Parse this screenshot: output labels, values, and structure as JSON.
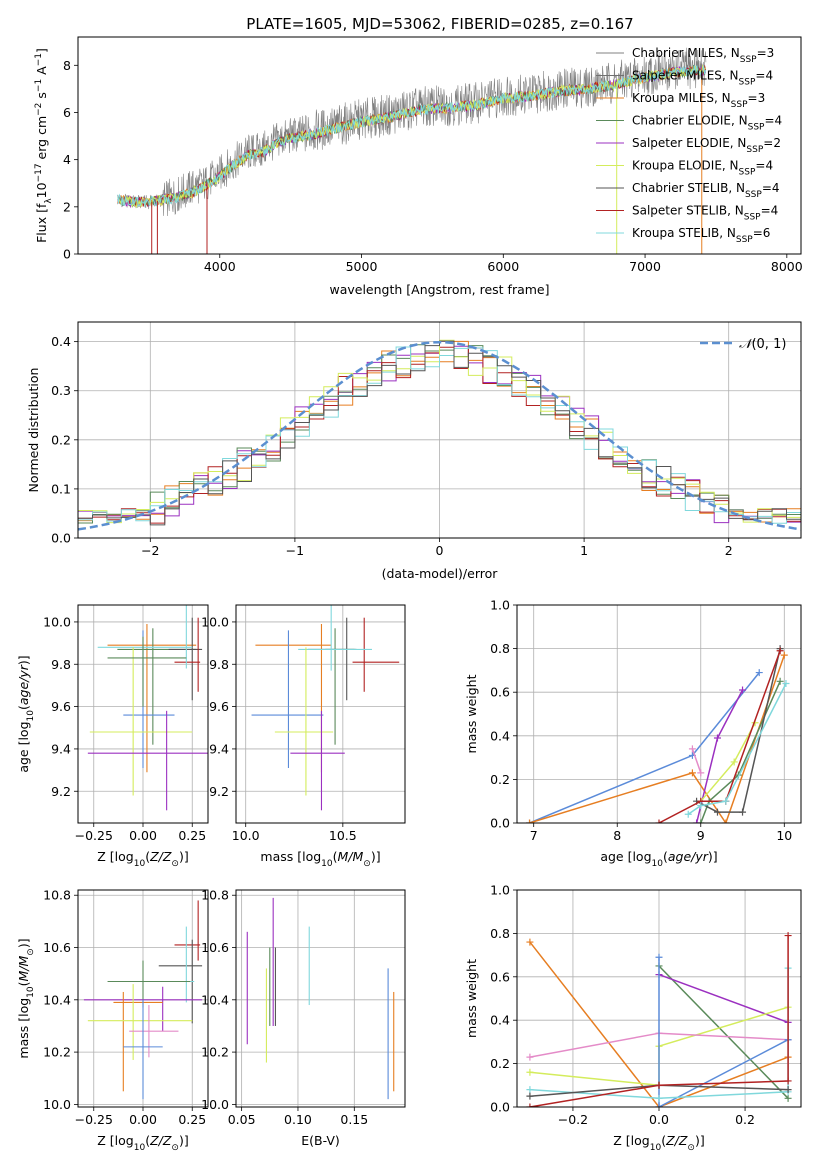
{
  "figure_title": "PLATE=1605, MJD=53062, FIBERID=0285, z=0.167",
  "colors": {
    "chabrier_miles": "#808080",
    "salpeter_miles": "#707070",
    "kroupa_miles": "#e67e22",
    "chabrier_elodie": "#5a8a5a",
    "salpeter_elodie": "#9b30c0",
    "kroupa_elodie": "#d4ec5c",
    "chabrier_stelib": "#555555",
    "salpeter_stelib": "#b22222",
    "kroupa_stelib": "#80d8dc",
    "extra_blue": "#5b8bd9",
    "extra_pink": "#e48bc8",
    "normal_curve": "#5b8fd0"
  },
  "chart_data": [
    {
      "id": "spectrum",
      "type": "line",
      "title": "PLATE=1605, MJD=53062, FIBERID=0285, z=0.167",
      "xlabel": "wavelength [Angstrom, rest frame]",
      "ylabel": "Flux [f_λ 10^-17 erg cm^-2 s^-1 A^-1]",
      "xlim": [
        3000,
        8100
      ],
      "ylim": [
        0,
        9.2
      ],
      "xticks": [
        4000,
        5000,
        6000,
        7000,
        8000
      ],
      "yticks": [
        0,
        2,
        4,
        6,
        8
      ],
      "legend_position": "right",
      "legend": [
        {
          "label": "Chabrier MILES, N_SSP=3",
          "color": "#808080"
        },
        {
          "label": "Salpeter MILES, N_SSP=4",
          "color": "#707070"
        },
        {
          "label": "Kroupa MILES, N_SSP=3",
          "color": "#e67e22"
        },
        {
          "label": "Chabrier ELODIE, N_SSP=4",
          "color": "#5a8a5a"
        },
        {
          "label": "Salpeter ELODIE, N_SSP=2",
          "color": "#9b30c0"
        },
        {
          "label": "Kroupa ELODIE, N_SSP=4",
          "color": "#d4ec5c"
        },
        {
          "label": "Chabrier STELIB, N_SSP=4",
          "color": "#555555"
        },
        {
          "label": "Salpeter STELIB, N_SSP=4",
          "color": "#b22222"
        },
        {
          "label": "Kroupa STELIB, N_SSP=6",
          "color": "#80d8dc"
        }
      ],
      "data_continuum": {
        "x": [
          3280,
          3400,
          3500,
          3600,
          3700,
          3800,
          3900,
          4000,
          4100,
          4200,
          4300,
          4400,
          4500,
          4600,
          4800,
          5000,
          5200,
          5400,
          5600,
          5800,
          6000,
          6200,
          6400,
          6600,
          6800,
          7000,
          7200,
          7400
        ],
        "y": [
          2.3,
          2.2,
          2.2,
          2.3,
          2.5,
          2.8,
          3.0,
          3.4,
          3.9,
          4.3,
          4.4,
          4.8,
          5.0,
          5.1,
          5.4,
          5.7,
          5.9,
          6.2,
          6.3,
          6.4,
          6.7,
          6.8,
          7.0,
          7.1,
          7.3,
          7.6,
          7.8,
          7.9
        ]
      },
      "model_continuum": {
        "x": [
          3280,
          3400,
          3500,
          3600,
          3700,
          3800,
          3900,
          4000,
          4100,
          4200,
          4300,
          4400,
          4500,
          4600,
          4800,
          5000,
          5200,
          5400,
          5600,
          5800,
          6000,
          6200,
          6400,
          6600,
          6800,
          7000,
          7200,
          7400
        ],
        "y": [
          2.3,
          2.2,
          2.2,
          2.3,
          2.4,
          2.6,
          2.9,
          3.3,
          3.8,
          4.2,
          4.3,
          4.7,
          4.9,
          5.0,
          5.3,
          5.6,
          5.8,
          6.1,
          6.2,
          6.3,
          6.6,
          6.7,
          6.9,
          7.0,
          7.2,
          7.5,
          7.7,
          7.8
        ]
      }
    },
    {
      "id": "residuals",
      "type": "histogram",
      "xlabel": "(data-model)/error",
      "ylabel": "Normed distribution",
      "xlim": [
        -2.5,
        2.5
      ],
      "ylim": [
        0,
        0.44
      ],
      "xticks": [
        -2,
        -1,
        0,
        1,
        2
      ],
      "yticks": [
        0.0,
        0.1,
        0.2,
        0.3,
        0.4
      ],
      "grid": true,
      "legend": [
        {
          "label": "N(0,1)",
          "style": "dashed",
          "color": "#5b8fd0"
        }
      ],
      "bin_width": 0.1,
      "reference_curve": "normal(0,1)"
    },
    {
      "id": "age_vs_Z",
      "type": "errorbar",
      "xlabel": "Z [log10(Z/Z_sun)]",
      "ylabel": "age [log10(age/yr)]",
      "xlim": [
        -0.33,
        0.33
      ],
      "ylim": [
        9.05,
        10.08
      ],
      "xticks": [
        -0.25,
        0.0,
        0.25
      ],
      "yticks": [
        9.2,
        9.4,
        9.6,
        9.8,
        10.0
      ],
      "grid": true,
      "points": [
        {
          "x": 0.02,
          "y": 9.89,
          "xerr": [
            0.2,
            0.25
          ],
          "yerr": [
            0.6,
            0.1
          ],
          "color": "#e67e22"
        },
        {
          "x": 0.05,
          "y": 9.87,
          "xerr": [
            0.18,
            0.22
          ],
          "yerr": [
            0.45,
            0.1
          ],
          "color": "#5a8a5a"
        },
        {
          "x": 0.25,
          "y": 9.87,
          "xerr": [
            0.12,
            0.05
          ],
          "yerr": [
            0.24,
            0.15
          ],
          "color": "#555555"
        },
        {
          "x": 0.28,
          "y": 9.81,
          "xerr": [
            0.12,
            0.01
          ],
          "yerr": [
            0.14,
            0.21
          ],
          "color": "#b22222"
        },
        {
          "x": 0.22,
          "y": 9.88,
          "xerr": [
            0.45,
            0.03
          ],
          "yerr": [
            0.1,
            0.22
          ],
          "color": "#80d8dc"
        },
        {
          "x": 0.0,
          "y": 9.56,
          "xerr": [
            0.1,
            0.16
          ],
          "yerr": [
            0.25,
            0.4
          ],
          "color": "#5b8bd9"
        },
        {
          "x": -0.05,
          "y": 9.48,
          "xerr": [
            0.22,
            0.3
          ],
          "yerr": [
            0.3,
            0.4
          ],
          "color": "#d4ec5c"
        },
        {
          "x": 0.12,
          "y": 9.38,
          "xerr": [
            0.4,
            0.3
          ],
          "yerr": [
            0.27,
            0.2
          ],
          "color": "#9b30c0"
        },
        {
          "x": 0.0,
          "y": 9.83,
          "xerr": [
            0.18,
            0.22
          ],
          "yerr": [
            0.23,
            0.1
          ],
          "color": "#5a8a5a"
        }
      ]
    },
    {
      "id": "age_vs_mass",
      "type": "errorbar",
      "xlabel": "mass [log10(M/M_sun)]",
      "xlim": [
        9.95,
        10.82
      ],
      "ylim": [
        9.05,
        10.08
      ],
      "xticks": [
        10.0,
        10.5
      ],
      "yticks": [
        9.2,
        9.4,
        9.6,
        9.8,
        10.0
      ],
      "grid": true,
      "points": [
        {
          "x": 10.39,
          "y": 9.89,
          "xerr": [
            0.34,
            0.05
          ],
          "yerr": [
            0.6,
            0.1
          ],
          "color": "#e67e22"
        },
        {
          "x": 10.46,
          "y": 9.87,
          "xerr": [
            0.05,
            0.1
          ],
          "yerr": [
            0.45,
            0.1
          ],
          "color": "#5a8a5a"
        },
        {
          "x": 10.52,
          "y": 9.87,
          "xerr": [
            0.2,
            0.05
          ],
          "yerr": [
            0.24,
            0.15
          ],
          "color": "#555555"
        },
        {
          "x": 10.61,
          "y": 9.81,
          "xerr": [
            0.06,
            0.18
          ],
          "yerr": [
            0.14,
            0.21
          ],
          "color": "#b22222"
        },
        {
          "x": 10.44,
          "y": 9.87,
          "xerr": [
            0.17,
            0.21
          ],
          "yerr": [
            0.1,
            0.22
          ],
          "color": "#80d8dc"
        },
        {
          "x": 10.22,
          "y": 9.56,
          "xerr": [
            0.19,
            0.18
          ],
          "yerr": [
            0.25,
            0.4
          ],
          "color": "#5b8bd9"
        },
        {
          "x": 10.31,
          "y": 9.48,
          "xerr": [
            0.16,
            0.14
          ],
          "yerr": [
            0.3,
            0.4
          ],
          "color": "#d4ec5c"
        },
        {
          "x": 10.39,
          "y": 9.38,
          "xerr": [
            0.16,
            0.12
          ],
          "yerr": [
            0.27,
            0.2
          ],
          "color": "#9b30c0"
        }
      ]
    },
    {
      "id": "massweight_vs_age",
      "type": "line",
      "xlabel": "age [log10(age/yr)]",
      "ylabel": "mass weight",
      "xlim": [
        6.8,
        10.2
      ],
      "ylim": [
        0,
        1.0
      ],
      "xticks": [
        7,
        8,
        9,
        10
      ],
      "yticks": [
        0.0,
        0.2,
        0.4,
        0.6,
        0.8,
        1.0
      ],
      "grid": true,
      "series": [
        {
          "color": "#5b8bd9",
          "x": [
            6.95,
            8.9,
            9.7
          ],
          "y": [
            0.0,
            0.31,
            0.69
          ]
        },
        {
          "color": "#e67e22",
          "x": [
            6.95,
            8.9,
            9.3,
            10.0
          ],
          "y": [
            0.0,
            0.23,
            0.0,
            0.77
          ]
        },
        {
          "color": "#9b30c0",
          "x": [
            8.95,
            9.2,
            9.5
          ],
          "y": [
            0.0,
            0.39,
            0.61
          ]
        },
        {
          "color": "#d4ec5c",
          "x": [
            9.0,
            9.4,
            9.65
          ],
          "y": [
            0.1,
            0.28,
            0.46
          ]
        },
        {
          "color": "#5a8a5a",
          "x": [
            9.0,
            9.1,
            9.45,
            9.95
          ],
          "y": [
            0.0,
            0.1,
            0.22,
            0.65
          ]
        },
        {
          "color": "#555555",
          "x": [
            8.95,
            9.2,
            9.5,
            9.95
          ],
          "y": [
            0.1,
            0.05,
            0.05,
            0.8
          ]
        },
        {
          "color": "#b22222",
          "x": [
            8.5,
            9.0,
            9.3,
            9.95
          ],
          "y": [
            0.0,
            0.1,
            0.1,
            0.79
          ]
        },
        {
          "color": "#80d8dc",
          "x": [
            8.85,
            9.0,
            9.3,
            10.02
          ],
          "y": [
            0.04,
            0.08,
            0.1,
            0.64
          ]
        },
        {
          "color": "#e48bc8",
          "x": [
            8.9,
            9.0
          ],
          "y": [
            0.34,
            0.23
          ]
        }
      ]
    },
    {
      "id": "mass_vs_Z",
      "type": "errorbar",
      "xlabel": "Z [log10(Z/Z_sun)]",
      "ylabel": "mass [log10(M/M_sun)]",
      "xlim": [
        -0.33,
        0.33
      ],
      "ylim": [
        9.99,
        10.82
      ],
      "xticks": [
        -0.25,
        0.0,
        0.25
      ],
      "yticks": [
        10.0,
        10.2,
        10.4,
        10.6,
        10.8
      ],
      "grid": true,
      "points": [
        {
          "x": 0.28,
          "y": 10.61,
          "xerr": [
            0.12,
            0.01
          ],
          "yerr": [
            0.06,
            0.17
          ],
          "color": "#b22222"
        },
        {
          "x": 0.25,
          "y": 10.53,
          "xerr": [
            0.17,
            0.05
          ],
          "yerr": [
            0.22,
            0.1
          ],
          "color": "#555555"
        },
        {
          "x": 0.22,
          "y": 10.47,
          "xerr": [
            0.37,
            0.04
          ],
          "yerr": [
            0.08,
            0.21
          ],
          "color": "#80d8dc"
        },
        {
          "x": 0.0,
          "y": 10.47,
          "xerr": [
            0.18,
            0.24
          ],
          "yerr": [
            0.1,
            0.08
          ],
          "color": "#5a8a5a"
        },
        {
          "x": 0.1,
          "y": 10.4,
          "xerr": [
            0.4,
            0.2
          ],
          "yerr": [
            0.12,
            0.05
          ],
          "color": "#9b30c0"
        },
        {
          "x": -0.1,
          "y": 10.39,
          "xerr": [
            0.05,
            0.2
          ],
          "yerr": [
            0.34,
            0.04
          ],
          "color": "#e67e22"
        },
        {
          "x": -0.05,
          "y": 10.32,
          "xerr": [
            0.23,
            0.3
          ],
          "yerr": [
            0.15,
            0.14
          ],
          "color": "#d4ec5c"
        },
        {
          "x": 0.03,
          "y": 10.28,
          "xerr": [
            0.1,
            0.15
          ],
          "yerr": [
            0.1,
            0.1
          ],
          "color": "#e48bc8"
        },
        {
          "x": 0.0,
          "y": 10.22,
          "xerr": [
            0.1,
            0.1
          ],
          "yerr": [
            0.2,
            0.18
          ],
          "color": "#5b8bd9"
        }
      ]
    },
    {
      "id": "mass_vs_ebv",
      "type": "errorbar",
      "xlabel": "E(B-V)",
      "xlim": [
        0.045,
        0.195
      ],
      "ylim": [
        9.99,
        10.82
      ],
      "xticks": [
        0.05,
        0.1,
        0.15
      ],
      "yticks": [
        10.0,
        10.2,
        10.4,
        10.6,
        10.8
      ],
      "grid": true,
      "points": [
        {
          "x": 0.055,
          "y": 10.45,
          "yerr": [
            0.22,
            0.21
          ],
          "color": "#9b30c0"
        },
        {
          "x": 0.072,
          "y": 10.3,
          "yerr": [
            0.14,
            0.22
          ],
          "color": "#d4ec5c"
        },
        {
          "x": 0.075,
          "y": 10.42,
          "yerr": [
            0.12,
            0.18
          ],
          "color": "#5a8a5a"
        },
        {
          "x": 0.078,
          "y": 10.55,
          "yerr": [
            0.25,
            0.24
          ],
          "color": "#9b30c0"
        },
        {
          "x": 0.08,
          "y": 10.45,
          "yerr": [
            0.15,
            0.15
          ],
          "color": "#555555"
        },
        {
          "x": 0.11,
          "y": 10.49,
          "yerr": [
            0.11,
            0.19
          ],
          "color": "#80d8dc"
        },
        {
          "x": 0.18,
          "y": 10.28,
          "yerr": [
            0.26,
            0.24
          ],
          "color": "#5b8bd9"
        },
        {
          "x": 0.185,
          "y": 10.25,
          "yerr": [
            0.2,
            0.18
          ],
          "color": "#e67e22"
        }
      ]
    },
    {
      "id": "massweight_vs_Z",
      "type": "line",
      "xlabel": "Z [log10(Z/Z_sun)]",
      "ylabel": "mass weight",
      "xlim": [
        -0.33,
        0.33
      ],
      "ylim": [
        0,
        1.0
      ],
      "xticks": [
        -0.2,
        0.0,
        0.2
      ],
      "yticks": [
        0.0,
        0.2,
        0.4,
        0.6,
        0.8,
        1.0
      ],
      "grid": true,
      "series": [
        {
          "color": "#e67e22",
          "x": [
            -0.3,
            0.0,
            0.3
          ],
          "y": [
            0.76,
            0.0,
            0.23
          ]
        },
        {
          "color": "#5a8a5a",
          "x": [
            0.0,
            0.3
          ],
          "y": [
            0.65,
            0.04
          ]
        },
        {
          "color": "#9b30c0",
          "x": [
            0.0,
            0.3
          ],
          "y": [
            0.61,
            0.39
          ]
        },
        {
          "color": "#d4ec5c",
          "x": [
            -0.3,
            0.0,
            0.0,
            0.3
          ],
          "y": [
            0.16,
            0.1,
            0.28,
            0.46
          ]
        },
        {
          "color": "#e48bc8",
          "x": [
            -0.3,
            0.0,
            0.3
          ],
          "y": [
            0.23,
            0.34,
            0.31
          ]
        },
        {
          "color": "#5b8bd9",
          "x": [
            0.0,
            0.0,
            0.3
          ],
          "y": [
            0.69,
            0.0,
            0.31
          ]
        },
        {
          "color": "#80d8dc",
          "x": [
            -0.3,
            0.0,
            0.3,
            0.3
          ],
          "y": [
            0.08,
            0.04,
            0.07,
            0.64
          ]
        },
        {
          "color": "#555555",
          "x": [
            -0.3,
            0.0,
            0.3
          ],
          "y": [
            0.05,
            0.1,
            0.08
          ]
        },
        {
          "color": "#b22222",
          "x": [
            -0.3,
            0.0,
            0.3,
            0.3
          ],
          "y": [
            0.0,
            0.1,
            0.12,
            0.79
          ]
        }
      ]
    }
  ]
}
